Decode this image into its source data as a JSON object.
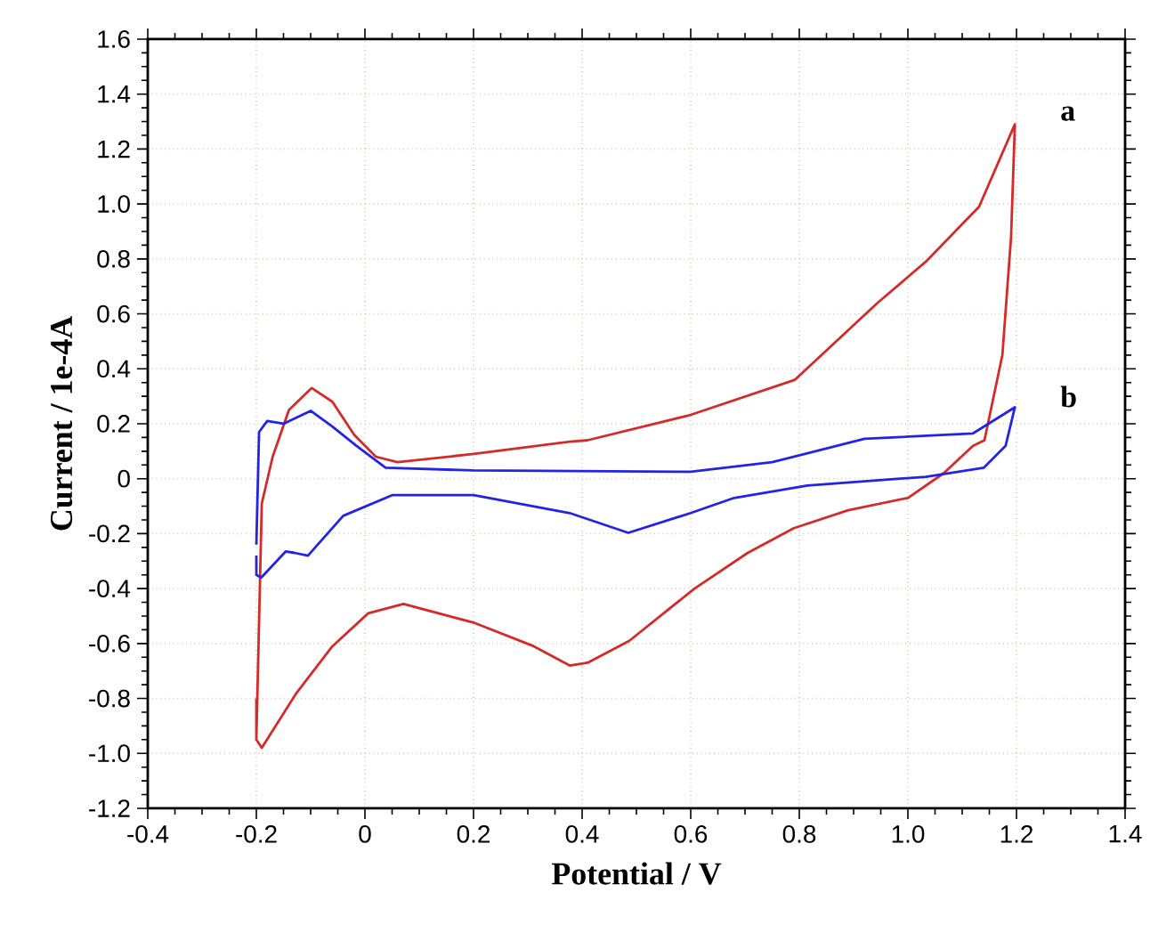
{
  "chart_data": {
    "type": "line",
    "xlabel": "Potential / V",
    "ylabel": "Current / 1e-4A",
    "xlim": [
      -0.4,
      1.4
    ],
    "ylim": [
      -1.2,
      1.6
    ],
    "xticks": [
      -0.4,
      -0.2,
      0,
      0.2,
      0.4,
      0.6,
      0.8,
      {
        "value": 1,
        "label": "1.0"
      },
      1.2,
      1.4
    ],
    "yticks": [
      -1.2,
      {
        "value": -1,
        "label": "-1.0"
      },
      -0.8,
      -0.6,
      -0.4,
      -0.2,
      0,
      0.2,
      0.4,
      0.6,
      0.8,
      {
        "value": 1,
        "label": "1.0"
      },
      1.2,
      1.4,
      1.6
    ],
    "grid": true,
    "marker": "none",
    "line_style": "solid",
    "series": [
      {
        "color": "#d42a2a",
        "x": [
          -0.2,
          -0.19,
          -0.17,
          -0.14,
          -0.098,
          -0.06,
          -0.02,
          0.02,
          0.06,
          0.2,
          0.377,
          0.41,
          0.596,
          0.792,
          0.944,
          1.033,
          1.131,
          1.197,
          1.19,
          1.174,
          1.141,
          1.12,
          1.066,
          1.0,
          0.89,
          0.79,
          0.705,
          0.607,
          0.487,
          0.41,
          0.377,
          0.311,
          0.202,
          0.071,
          0.006,
          -0.06,
          -0.126,
          -0.19,
          -0.2,
          -0.2
        ],
        "values": [
          -0.95,
          -0.09,
          0.08,
          0.25,
          0.33,
          0.28,
          0.16,
          0.08,
          0.06,
          0.09,
          0.135,
          0.14,
          0.23,
          0.36,
          0.64,
          0.79,
          0.99,
          1.29,
          0.88,
          0.45,
          0.14,
          0.12,
          0.02,
          -0.07,
          -0.115,
          -0.18,
          -0.27,
          -0.4,
          -0.59,
          -0.67,
          -0.68,
          -0.61,
          -0.525,
          -0.456,
          -0.49,
          -0.61,
          -0.78,
          -0.98,
          -0.95,
          -0.8
        ]
      },
      {
        "color": "#2323e6",
        "x": [
          -0.2,
          -0.195,
          -0.18,
          -0.15,
          -0.1,
          -0.06,
          -0.016,
          0.038,
          0.2,
          0.6,
          0.75,
          0.92,
          1.12,
          1.197,
          1.18,
          1.14,
          1.033,
          0.815,
          0.68,
          0.6,
          0.485,
          0.377,
          0.2,
          0.05,
          -0.04,
          -0.105,
          -0.13,
          -0.146,
          -0.191,
          -0.2,
          -0.2
        ],
        "values": [
          -0.24,
          0.17,
          0.21,
          0.2,
          0.247,
          0.19,
          0.12,
          0.04,
          0.03,
          0.025,
          0.06,
          0.145,
          0.165,
          0.26,
          0.12,
          0.04,
          0.007,
          -0.025,
          -0.07,
          -0.125,
          -0.197,
          -0.125,
          -0.06,
          -0.06,
          -0.135,
          -0.28,
          -0.27,
          -0.265,
          -0.36,
          -0.35,
          -0.28
        ]
      }
    ],
    "annotations": [
      "a",
      "b"
    ]
  }
}
